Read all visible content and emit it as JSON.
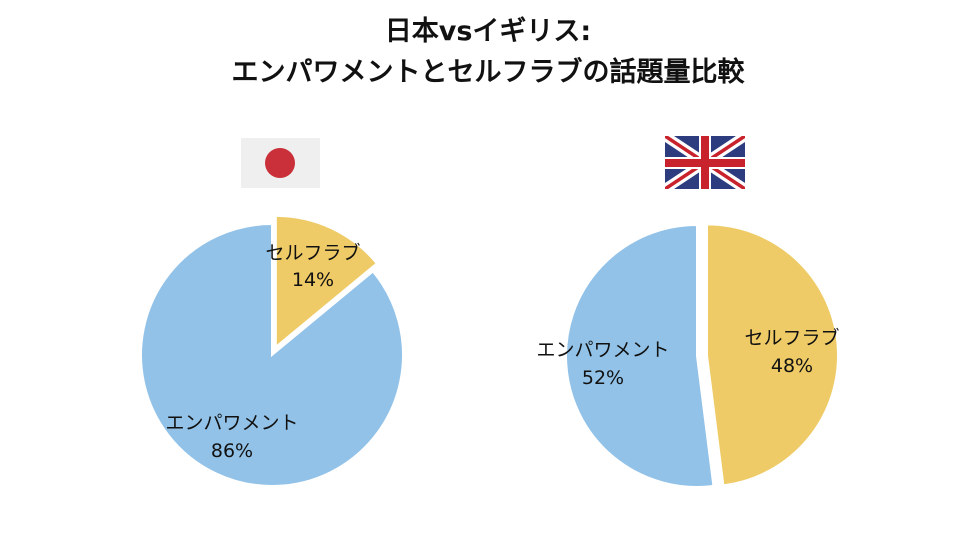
{
  "title_line1": "日本vsイギリス:",
  "title_line2": "エンパワメントとセルフラブの話題量比較",
  "colors": {
    "empowerment": "#92C2E8",
    "selflove": "#EECB66",
    "jp_flag_bg": "#EFEFEF",
    "jp_flag_disc": "#C9303A",
    "uk_blue": "#2C3C7E",
    "uk_red": "#C8232C"
  },
  "chart_data": [
    {
      "type": "pie",
      "flag": "japan-flag",
      "slices": [
        {
          "label": "セルフラブ",
          "value": 14,
          "value_text": "14%",
          "color": "#EECB66",
          "exploded": true
        },
        {
          "label": "エンパワメント",
          "value": 86,
          "value_text": "86%",
          "color": "#92C2E8",
          "exploded": false
        }
      ]
    },
    {
      "type": "pie",
      "flag": "uk-flag",
      "slices": [
        {
          "label": "セルフラブ",
          "value": 48,
          "value_text": "48%",
          "color": "#EECB66",
          "exploded": true
        },
        {
          "label": "エンパワメント",
          "value": 52,
          "value_text": "52%",
          "color": "#92C2E8",
          "exploded": false
        }
      ]
    }
  ]
}
